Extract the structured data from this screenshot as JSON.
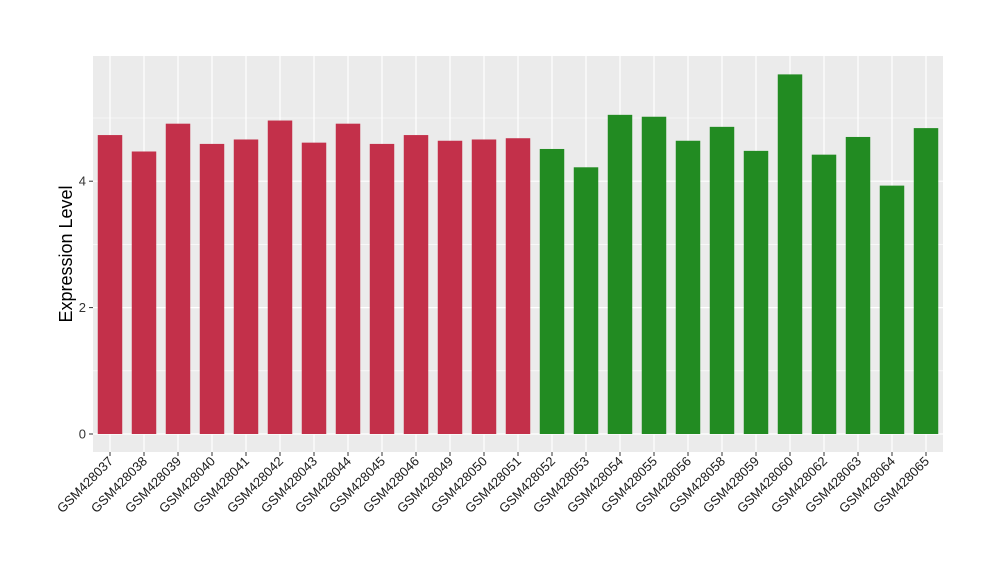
{
  "chart_data": {
    "type": "bar",
    "title": "",
    "xlabel": "",
    "ylabel": "Expression Level",
    "ylim": [
      0,
      6.0
    ],
    "y_ticks": [
      0,
      2,
      4
    ],
    "grid": true,
    "panel_background": "#ebebeb",
    "gridline_color": "#ffffff",
    "categories": [
      "GSM428037",
      "GSM428038",
      "GSM428039",
      "GSM428040",
      "GSM428041",
      "GSM428042",
      "GSM428043",
      "GSM428044",
      "GSM428045",
      "GSM428046",
      "GSM428049",
      "GSM428050",
      "GSM428051",
      "GSM428052",
      "GSM428053",
      "GSM428054",
      "GSM428055",
      "GSM428056",
      "GSM428058",
      "GSM428059",
      "GSM428060",
      "GSM428062",
      "GSM428063",
      "GSM428064",
      "GSM428065"
    ],
    "values": [
      4.73,
      4.47,
      4.91,
      4.59,
      4.66,
      4.96,
      4.61,
      4.91,
      4.59,
      4.73,
      4.64,
      4.66,
      4.68,
      4.51,
      4.22,
      5.05,
      5.02,
      4.64,
      4.86,
      4.48,
      5.69,
      4.42,
      4.7,
      3.93,
      4.84
    ],
    "group_colors": [
      "#c3304a",
      "#c3304a",
      "#c3304a",
      "#c3304a",
      "#c3304a",
      "#c3304a",
      "#c3304a",
      "#c3304a",
      "#c3304a",
      "#c3304a",
      "#c3304a",
      "#c3304a",
      "#c3304a",
      "#228b22",
      "#228b22",
      "#228b22",
      "#228b22",
      "#228b22",
      "#228b22",
      "#228b22",
      "#228b22",
      "#228b22",
      "#228b22",
      "#228b22",
      "#228b22"
    ]
  }
}
